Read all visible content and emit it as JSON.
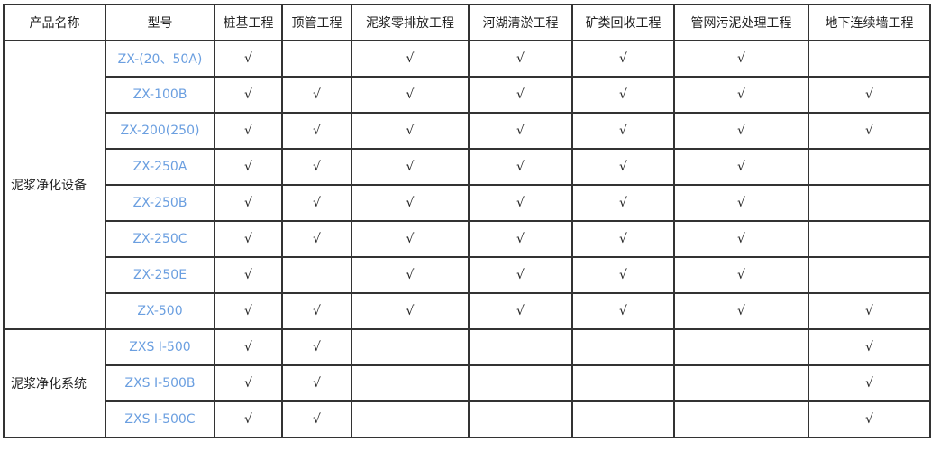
{
  "check_symbol": "√",
  "colors": {
    "model_text": "#6b9fe0",
    "border": "#333333"
  },
  "header": [
    "产品名称",
    "型号",
    "桩基工程",
    "顶管工程",
    "泥浆零排放工程",
    "河湖清淤工程",
    "矿类回收工程",
    "管网污泥处理工程",
    "地下连续墙工程"
  ],
  "groups": [
    {
      "name": "泥浆净化设备",
      "rows": [
        {
          "model": "ZX-(20、50A)",
          "marks": [
            true,
            false,
            true,
            true,
            true,
            true,
            false
          ]
        },
        {
          "model": "ZX-100B",
          "marks": [
            true,
            true,
            true,
            true,
            true,
            true,
            true
          ]
        },
        {
          "model": "ZX-200(250)",
          "marks": [
            true,
            true,
            true,
            true,
            true,
            true,
            true
          ]
        },
        {
          "model": "ZX-250A",
          "marks": [
            true,
            true,
            true,
            true,
            true,
            true,
            false
          ]
        },
        {
          "model": "ZX-250B",
          "marks": [
            true,
            true,
            true,
            true,
            true,
            true,
            false
          ]
        },
        {
          "model": "ZX-250C",
          "marks": [
            true,
            true,
            true,
            true,
            true,
            true,
            false
          ]
        },
        {
          "model": "ZX-250E",
          "marks": [
            true,
            false,
            true,
            true,
            true,
            true,
            false
          ]
        },
        {
          "model": "ZX-500",
          "marks": [
            true,
            true,
            true,
            true,
            true,
            true,
            true
          ]
        }
      ]
    },
    {
      "name": "泥浆净化系统",
      "rows": [
        {
          "model": "ZXS I-500",
          "marks": [
            true,
            true,
            false,
            false,
            false,
            false,
            true
          ]
        },
        {
          "model": "ZXS I-500B",
          "marks": [
            true,
            true,
            false,
            false,
            false,
            false,
            true
          ]
        },
        {
          "model": "ZXS I-500C",
          "marks": [
            true,
            true,
            false,
            false,
            false,
            false,
            true
          ]
        }
      ]
    }
  ]
}
